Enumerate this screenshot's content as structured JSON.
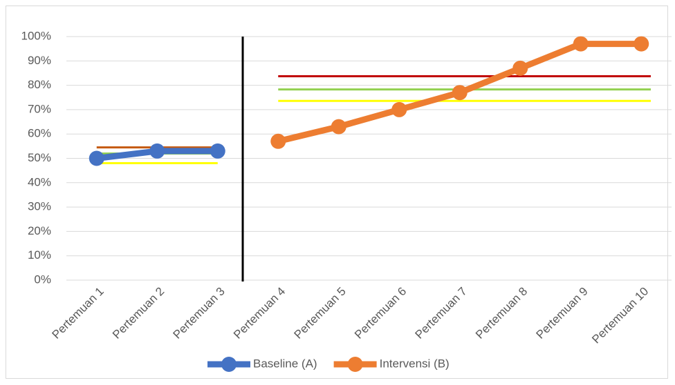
{
  "chart_data": {
    "type": "line",
    "categories": [
      "Pertemuan 1",
      "Pertemuan 2",
      "Pertemuan 3",
      "Pertemuan 4",
      "Pertemuan 5",
      "Pertemuan 6",
      "Pertemuan 7",
      "Pertemuan 8",
      "Pertemuan 9",
      "Pertemuan 10"
    ],
    "series": [
      {
        "name": "Baseline (A)",
        "color": "#4472c4",
        "marker": true,
        "values": [
          50,
          53,
          53,
          null,
          null,
          null,
          null,
          null,
          null,
          null
        ]
      },
      {
        "name": "Intervensi (B)",
        "color": "#ed7d31",
        "marker": true,
        "values": [
          null,
          null,
          null,
          57,
          63,
          70,
          77,
          87,
          97,
          97
        ]
      },
      {
        "color": "#c55a11",
        "values": [
          54.5,
          54.5,
          54.5,
          null,
          null,
          null,
          null,
          null,
          null,
          null
        ]
      },
      {
        "color": "#92d050",
        "values": [
          52,
          52,
          52,
          null,
          null,
          null,
          null,
          null,
          null,
          null
        ]
      },
      {
        "color": "#ffff00",
        "values": [
          48,
          48,
          48,
          null,
          null,
          null,
          null,
          null,
          null,
          null
        ]
      },
      {
        "color": "#c00000",
        "values": [
          null,
          null,
          null,
          83.7,
          83.7,
          83.7,
          83.7,
          83.7,
          83.7,
          83.7
        ]
      },
      {
        "color": "#92d050",
        "values": [
          null,
          null,
          null,
          78.3,
          78.3,
          78.3,
          78.3,
          78.3,
          78.3,
          78.3
        ]
      },
      {
        "color": "#ffff00",
        "values": [
          null,
          null,
          null,
          73.6,
          73.6,
          73.6,
          73.6,
          73.6,
          73.6,
          73.6
        ]
      }
    ],
    "ylim": [
      0,
      100
    ],
    "yticks": [
      {
        "value": 0,
        "label": "0%"
      },
      {
        "value": 10,
        "label": "10%"
      },
      {
        "value": 20,
        "label": "20%"
      },
      {
        "value": 30,
        "label": "30%"
      },
      {
        "value": 40,
        "label": "40%"
      },
      {
        "value": 50,
        "label": "50%"
      },
      {
        "value": 60,
        "label": "60%"
      },
      {
        "value": 70,
        "label": "70%"
      },
      {
        "value": 80,
        "label": "80%"
      },
      {
        "value": 90,
        "label": "90%"
      },
      {
        "value": 100,
        "label": "100%"
      }
    ],
    "grid": true,
    "legend": "bottom"
  }
}
